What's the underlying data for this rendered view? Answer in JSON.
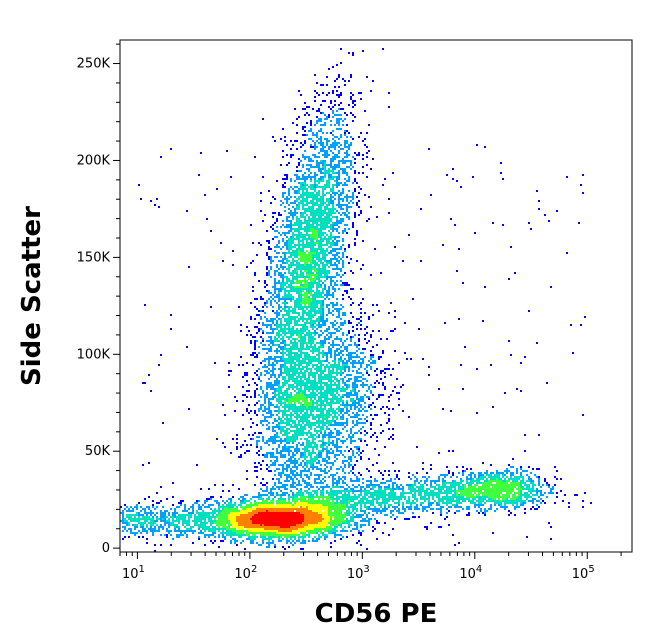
{
  "chart_data": {
    "type": "scatter",
    "plot_style": "flow-cytometry density dot plot (pseudocolor)",
    "xlabel": "CD56 PE",
    "ylabel": "Side Scatter",
    "x_scale": "log",
    "xlim": [
      7,
      250000
    ],
    "ylim": [
      -2000,
      262144
    ],
    "grid": false,
    "x_ticks": [
      {
        "value": 10,
        "base": "10",
        "exp": "1"
      },
      {
        "value": 100,
        "base": "10",
        "exp": "2"
      },
      {
        "value": 1000,
        "base": "10",
        "exp": "3"
      },
      {
        "value": 10000,
        "base": "10",
        "exp": "4"
      },
      {
        "value": 100000,
        "base": "10",
        "exp": "5"
      }
    ],
    "y_ticks": [
      {
        "value": 0,
        "label": "0"
      },
      {
        "value": 50000,
        "label": "50K"
      },
      {
        "value": 100000,
        "label": "100K"
      },
      {
        "value": 150000,
        "label": "150K"
      },
      {
        "value": 200000,
        "label": "200K"
      },
      {
        "value": 250000,
        "label": "250K"
      }
    ],
    "density_colors": [
      "#0000ff",
      "#00a0ff",
      "#00e0c0",
      "#40ff40",
      "#ffff00",
      "#ff8000",
      "#ff0000"
    ],
    "populations": [
      {
        "cd56_center": 330,
        "ssc_center": 160000,
        "ssc_spread": 42000,
        "cd56_log_spread": 0.22,
        "peak_density": "high"
      },
      {
        "cd56_center": 450,
        "ssc_center": 80000,
        "ssc_spread": 20000,
        "cd56_log_spread": 0.3,
        "peak_density": "medium"
      },
      {
        "cd56_center": 180,
        "ssc_center": 15000,
        "ssc_spread": 6000,
        "cd56_log_spread": 0.35,
        "peak_density": "high"
      },
      {
        "cd56_center": 15000,
        "ssc_center": 28000,
        "ssc_spread": 6000,
        "cd56_log_spread": 0.35,
        "peak_density": "medium"
      }
    ]
  }
}
